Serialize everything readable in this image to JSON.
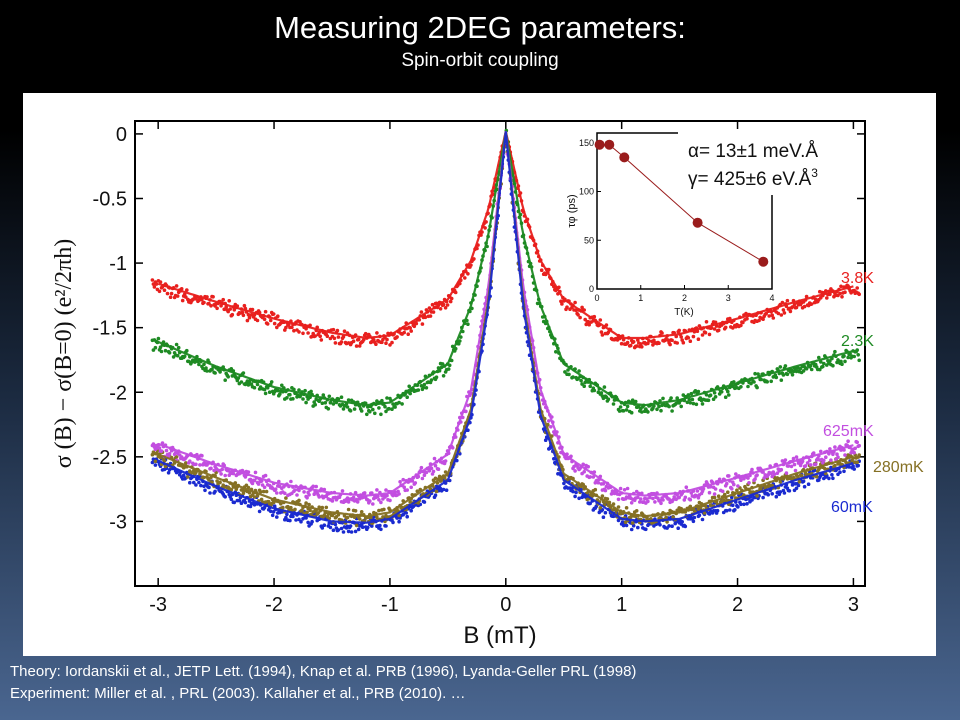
{
  "slide": {
    "title": "Measuring 2DEG parameters:",
    "subtitle": "Spin-orbit coupling",
    "references": {
      "line1": "Theory: Iordanskii et al., JETP Lett. (1994), Knap et al. PRB (1996), Lyanda-Geller PRL (1998)",
      "line2": "Experiment: Miller et al. , PRL (2003). Kallaher et al., PRB (2010). …"
    }
  },
  "chart_data": [
    {
      "type": "scatter",
      "xlabel": "B (mT)",
      "ylabel": "σ (B) − σ(B=0) (e²/2πh)",
      "xlim": [
        -3.2,
        3.1
      ],
      "ylim": [
        -3.5,
        0.1
      ],
      "xticks": [
        "-3",
        "-2",
        "-1",
        "0",
        "1",
        "2",
        "3"
      ],
      "yticks": [
        "0",
        "-0.5",
        "-1",
        "-1.5",
        "-2",
        "-2.5",
        "-3"
      ],
      "ytick_values": [
        0,
        -0.5,
        -1,
        -1.5,
        -2,
        -2.5,
        -3
      ],
      "xtick_values": [
        -3,
        -2,
        -1,
        0,
        1,
        2,
        3
      ],
      "series": [
        {
          "name": "3.8K",
          "color": "#e8201e",
          "x": [
            -3,
            -2.5,
            -2,
            -1.5,
            -1.2,
            -1,
            -0.5,
            -0.3,
            -0.15,
            0,
            0.15,
            0.3,
            0.5,
            1,
            1.2,
            1.5,
            2,
            2.5,
            3
          ],
          "y": [
            -1.18,
            -1.32,
            -1.45,
            -1.56,
            -1.6,
            -1.58,
            -1.3,
            -1.0,
            -0.6,
            0,
            -0.6,
            -1.0,
            -1.3,
            -1.6,
            -1.6,
            -1.57,
            -1.45,
            -1.32,
            -1.2
          ]
        },
        {
          "name": "2.3K",
          "color": "#1e8a23",
          "x": [
            -3,
            -2.5,
            -2,
            -1.5,
            -1.2,
            -1,
            -0.5,
            -0.3,
            -0.15,
            0,
            0.15,
            0.3,
            0.5,
            1,
            1.2,
            1.5,
            2,
            2.5,
            3
          ],
          "y": [
            -1.63,
            -1.82,
            -1.98,
            -2.08,
            -2.12,
            -2.1,
            -1.8,
            -1.35,
            -0.8,
            0,
            -0.8,
            -1.35,
            -1.8,
            -2.1,
            -2.12,
            -2.08,
            -1.95,
            -1.82,
            -1.7
          ]
        },
        {
          "name": "625mK",
          "color": "#c24ee0",
          "x": [
            -3,
            -2.5,
            -2,
            -1.5,
            -1.2,
            -1,
            -0.5,
            -0.3,
            -0.15,
            0,
            0.15,
            0.3,
            0.5,
            1,
            1.2,
            1.5,
            2,
            2.5,
            3
          ],
          "y": [
            -2.42,
            -2.58,
            -2.72,
            -2.8,
            -2.82,
            -2.8,
            -2.5,
            -2.0,
            -1.2,
            0,
            -1.2,
            -2.0,
            -2.5,
            -2.8,
            -2.82,
            -2.8,
            -2.68,
            -2.55,
            -2.43
          ]
        },
        {
          "name": "280mK",
          "color": "#857024",
          "x": [
            -3,
            -2.5,
            -2,
            -1.5,
            -1.2,
            -1,
            -0.5,
            -0.3,
            -0.15,
            0,
            0.15,
            0.3,
            0.5,
            1,
            1.2,
            1.5,
            2,
            2.5,
            3
          ],
          "y": [
            -2.5,
            -2.68,
            -2.85,
            -2.95,
            -2.98,
            -2.95,
            -2.65,
            -2.15,
            -1.3,
            0,
            -1.3,
            -2.15,
            -2.65,
            -2.95,
            -2.98,
            -2.95,
            -2.8,
            -2.65,
            -2.52
          ]
        },
        {
          "name": "60mK",
          "color": "#1a2ad0",
          "x": [
            -3,
            -2.5,
            -2,
            -1.5,
            -1.2,
            -1,
            -0.5,
            -0.3,
            -0.15,
            0,
            0.15,
            0.3,
            0.5,
            1,
            1.2,
            1.5,
            2,
            2.5,
            3
          ],
          "y": [
            -2.55,
            -2.75,
            -2.92,
            -3.02,
            -3.03,
            -3.0,
            -2.7,
            -2.2,
            -1.35,
            0,
            -1.35,
            -2.2,
            -2.7,
            -3.0,
            -3.02,
            -3.0,
            -2.85,
            -2.7,
            -2.57
          ]
        }
      ],
      "annotations": {
        "alpha": "α= 13±1 meV.Å",
        "gamma_prefix": "γ= 425±6 eV.Å",
        "gamma_exp": "3"
      }
    },
    {
      "type": "line",
      "xlabel": "T(K)",
      "ylabel": "τφ (ps)",
      "xlim": [
        0,
        4
      ],
      "ylim": [
        0,
        160
      ],
      "xticks": [
        "0",
        "1",
        "2",
        "3",
        "4"
      ],
      "xtick_values": [
        0,
        1,
        2,
        3,
        4
      ],
      "yticks": [
        "0",
        "50",
        "100",
        "150"
      ],
      "ytick_values": [
        0,
        50,
        100,
        150
      ],
      "color": "#9a1c1c",
      "x": [
        0.06,
        0.28,
        0.625,
        2.3,
        3.8
      ],
      "y": [
        148,
        148,
        135,
        68,
        28
      ]
    }
  ]
}
